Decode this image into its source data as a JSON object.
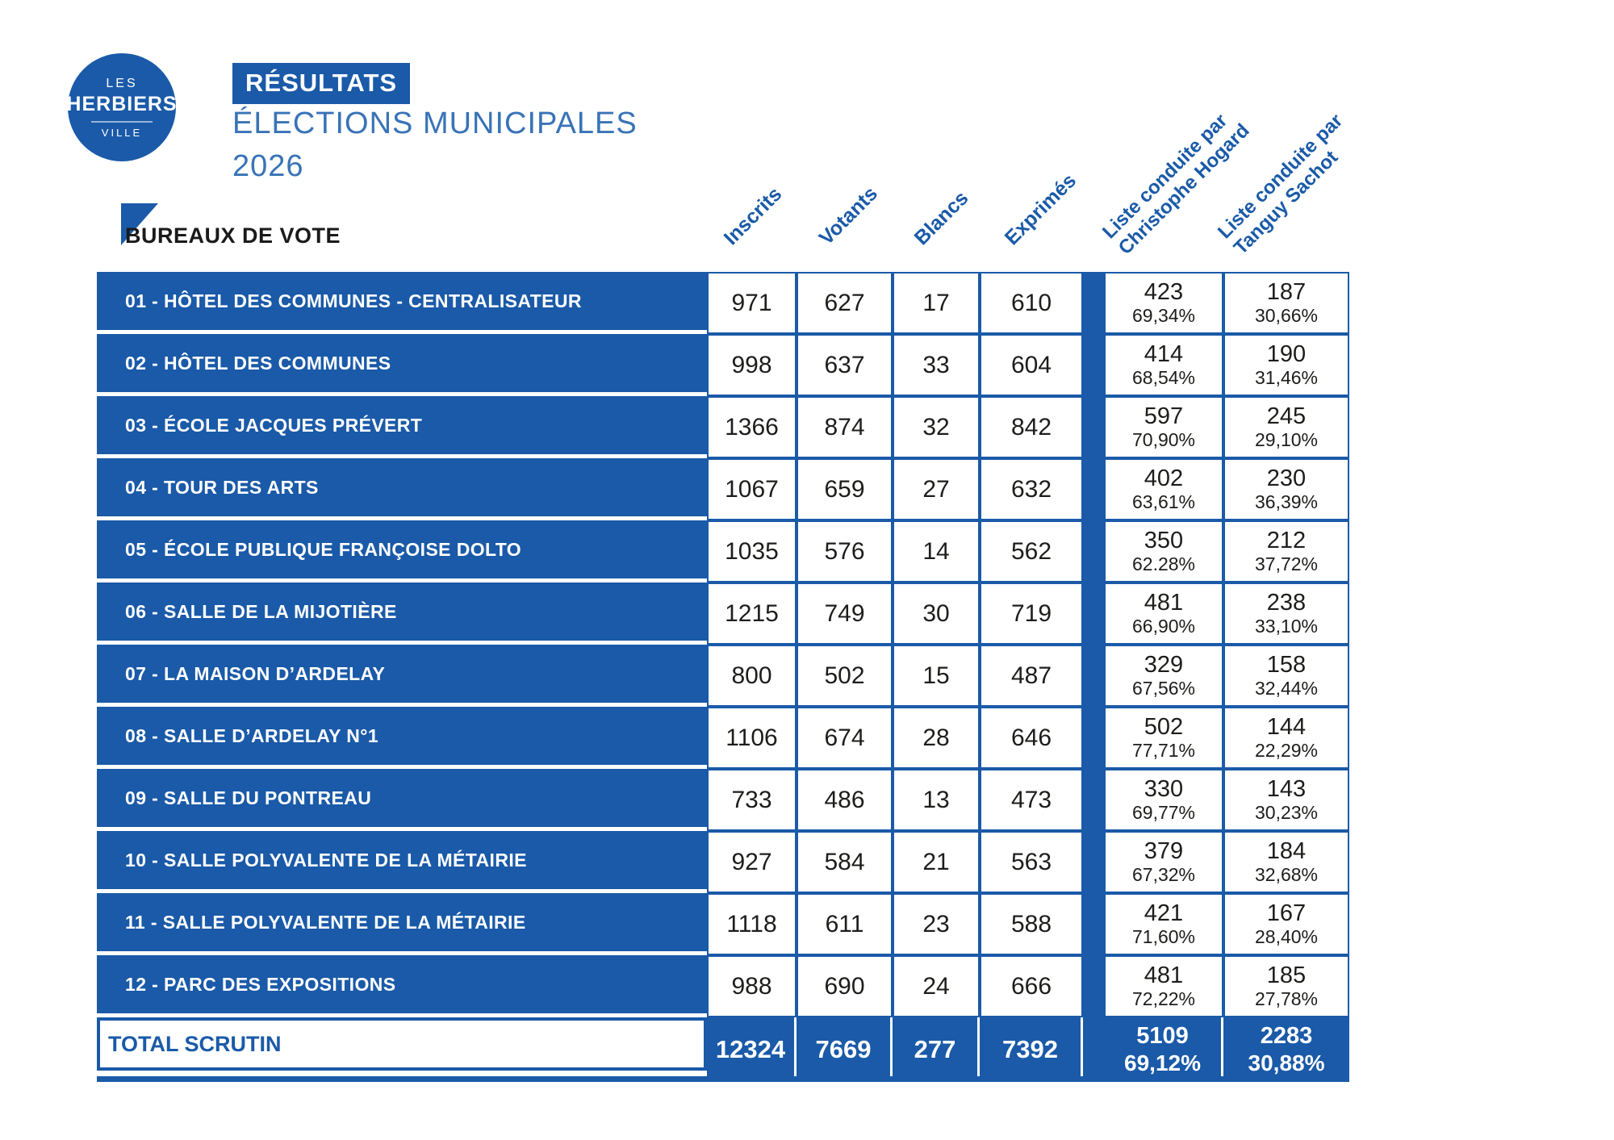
{
  "logo": {
    "line1": "LES",
    "line2": "HERBIERS",
    "line3": "VILLE"
  },
  "header": {
    "title": "RÉSULTATS",
    "subtitle_line1": "ÉLECTIONS MUNICIPALES",
    "subtitle_line2": "2026"
  },
  "table": {
    "section_label": "BUREAUX DE VOTE",
    "columns": [
      "Inscrits",
      "Votants",
      "Blancs",
      "Exprimés"
    ],
    "lists": [
      {
        "label_line1": "Liste conduite par",
        "label_line2": "Christophe Hogard"
      },
      {
        "label_line1": "Liste conduite par",
        "label_line2": "Tanguy Sachot"
      }
    ],
    "rows": [
      {
        "name": "01 - HÔTEL DES COMMUNES - CENTRALISATEUR",
        "inscrits": "971",
        "votants": "627",
        "blancs": "17",
        "exprimes": "610",
        "hogard": "423",
        "hogard_pct": "69,34%",
        "sachot": "187",
        "sachot_pct": "30,66%"
      },
      {
        "name": "02 - HÔTEL DES COMMUNES",
        "inscrits": "998",
        "votants": "637",
        "blancs": "33",
        "exprimes": "604",
        "hogard": "414",
        "hogard_pct": "68,54%",
        "sachot": "190",
        "sachot_pct": "31,46%"
      },
      {
        "name": "03 - ÉCOLE JACQUES PRÉVERT",
        "inscrits": "1366",
        "votants": "874",
        "blancs": "32",
        "exprimes": "842",
        "hogard": "597",
        "hogard_pct": "70,90%",
        "sachot": "245",
        "sachot_pct": "29,10%"
      },
      {
        "name": "04 - TOUR DES ARTS",
        "inscrits": "1067",
        "votants": "659",
        "blancs": "27",
        "exprimes": "632",
        "hogard": "402",
        "hogard_pct": "63,61%",
        "sachot": "230",
        "sachot_pct": "36,39%"
      },
      {
        "name": "05 - ÉCOLE PUBLIQUE FRANÇOISE DOLTO",
        "inscrits": "1035",
        "votants": "576",
        "blancs": "14",
        "exprimes": "562",
        "hogard": "350",
        "hogard_pct": "62.28%",
        "sachot": "212",
        "sachot_pct": "37,72%"
      },
      {
        "name": "06 - SALLE DE LA MIJOTIÈRE",
        "inscrits": "1215",
        "votants": "749",
        "blancs": "30",
        "exprimes": "719",
        "hogard": "481",
        "hogard_pct": "66,90%",
        "sachot": "238",
        "sachot_pct": "33,10%"
      },
      {
        "name": "07 - LA MAISON D’ARDELAY",
        "inscrits": "800",
        "votants": "502",
        "blancs": "15",
        "exprimes": "487",
        "hogard": "329",
        "hogard_pct": "67,56%",
        "sachot": "158",
        "sachot_pct": "32,44%"
      },
      {
        "name": "08 - SALLE D’ARDELAY N°1",
        "inscrits": "1106",
        "votants": "674",
        "blancs": "28",
        "exprimes": "646",
        "hogard": "502",
        "hogard_pct": "77,71%",
        "sachot": "144",
        "sachot_pct": "22,29%"
      },
      {
        "name": "09 - SALLE DU PONTREAU",
        "inscrits": "733",
        "votants": "486",
        "blancs": "13",
        "exprimes": "473",
        "hogard": "330",
        "hogard_pct": "69,77%",
        "sachot": "143",
        "sachot_pct": "30,23%"
      },
      {
        "name": "10 - SALLE POLYVALENTE DE LA MÉTAIRIE",
        "inscrits": "927",
        "votants": "584",
        "blancs": "21",
        "exprimes": "563",
        "hogard": "379",
        "hogard_pct": "67,32%",
        "sachot": "184",
        "sachot_pct": "32,68%"
      },
      {
        "name": "11 - SALLE POLYVALENTE DE LA MÉTAIRIE",
        "inscrits": "1118",
        "votants": "611",
        "blancs": "23",
        "exprimes": "588",
        "hogard": "421",
        "hogard_pct": "71,60%",
        "sachot": "167",
        "sachot_pct": "28,40%"
      },
      {
        "name": "12 - PARC DES EXPOSITIONS",
        "inscrits": "988",
        "votants": "690",
        "blancs": "24",
        "exprimes": "666",
        "hogard": "481",
        "hogard_pct": "72,22%",
        "sachot": "185",
        "sachot_pct": "27,78%"
      }
    ],
    "total": {
      "name": "TOTAL SCRUTIN",
      "inscrits": "12324",
      "votants": "7669",
      "blancs": "277",
      "exprimes": "7392",
      "hogard": "5109",
      "hogard_pct": "69,12%",
      "sachot": "2283",
      "sachot_pct": "30,88%"
    }
  },
  "colors": {
    "primary_blue": "#1a5aa8",
    "subtitle_blue": "#3873b7",
    "text_dark": "#1d1d1b"
  }
}
